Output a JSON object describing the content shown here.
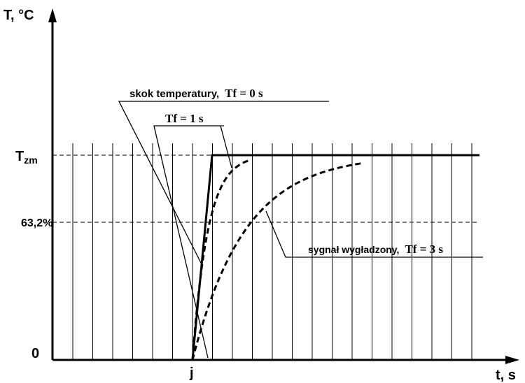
{
  "diagram": {
    "y_axis_label": "T, °C",
    "x_axis_label": "t, s",
    "origin_label": "0",
    "level_63_label": "63,2%",
    "final_level_label": {
      "main": "T",
      "sub": "zm"
    },
    "step_time_label": "j",
    "annotations": [
      {
        "text": "skok temperatury,",
        "formula": "Tf = 0 s"
      },
      {
        "formula": "Tf = 1 s"
      },
      {
        "text": "sygnał wygładzony,",
        "formula": "Tf = 3 s"
      }
    ]
  }
}
